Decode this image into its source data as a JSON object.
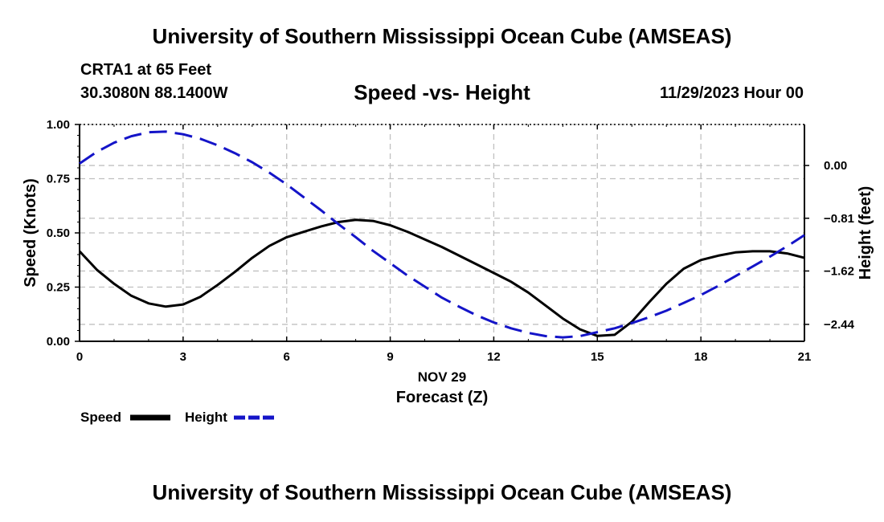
{
  "header": {
    "title": "University of Southern Mississippi Ocean Cube (AMSEAS)",
    "station": "CRTA1 at 65 Feet",
    "coords": "30.3080N  88.1400W",
    "subtitle": "Speed -vs- Height",
    "date": "11/29/2023 Hour 00"
  },
  "footer": {
    "title": "University of Southern Mississippi Ocean Cube (AMSEAS)"
  },
  "chart_data": {
    "type": "line",
    "title": "Speed -vs- Height",
    "xlabel_date": "NOV 29",
    "xlabel": "Forecast (Z)",
    "ylabel": "Speed (Knots)",
    "y2label": "Height (feet)",
    "xlim": [
      0,
      21
    ],
    "ylim": [
      0,
      1
    ],
    "y2lim": [
      -2.7,
      0.63
    ],
    "x_ticks": [
      0,
      3,
      6,
      9,
      12,
      15,
      18,
      21
    ],
    "x_tick_labels": [
      "0",
      "3",
      "6",
      "9",
      "12",
      "15",
      "18",
      "21"
    ],
    "y_ticks": [
      0,
      0.25,
      0.5,
      0.75,
      1.0
    ],
    "y_tick_labels": [
      "0.00",
      "0.25",
      "0.50",
      "0.75",
      "1.00"
    ],
    "y2_ticks": [
      0.0,
      -0.81,
      -1.62,
      -2.44
    ],
    "y2_tick_labels": [
      "0.00",
      "−0.81",
      "−1.62",
      "−2.44"
    ],
    "grid": true,
    "colors": {
      "speed": "#000000",
      "height": "#1414c8",
      "grid": "#c0c0c0"
    },
    "legend": [
      "Speed",
      "Height"
    ],
    "series": [
      {
        "name": "Speed",
        "axis": "left",
        "style": "solid",
        "x": [
          0,
          0.5,
          1,
          1.5,
          2,
          2.5,
          3,
          3.5,
          4,
          4.5,
          5,
          5.5,
          6,
          6.5,
          7,
          7.5,
          8,
          8.5,
          9,
          9.5,
          10,
          10.5,
          11,
          11.5,
          12,
          12.5,
          13,
          13.5,
          14,
          14.5,
          15,
          15.5,
          16,
          16.5,
          17,
          17.5,
          18,
          18.5,
          19,
          19.5,
          20,
          20.5,
          21
        ],
        "values": [
          0.415,
          0.33,
          0.265,
          0.21,
          0.175,
          0.16,
          0.17,
          0.205,
          0.26,
          0.32,
          0.385,
          0.44,
          0.48,
          0.505,
          0.53,
          0.55,
          0.56,
          0.555,
          0.535,
          0.505,
          0.47,
          0.435,
          0.395,
          0.355,
          0.315,
          0.275,
          0.225,
          0.165,
          0.105,
          0.055,
          0.025,
          0.03,
          0.09,
          0.18,
          0.265,
          0.335,
          0.375,
          0.395,
          0.41,
          0.415,
          0.415,
          0.405,
          0.385
        ]
      },
      {
        "name": "Height",
        "axis": "right",
        "style": "dashed",
        "x": [
          0,
          0.5,
          1,
          1.5,
          2,
          2.5,
          3,
          3.5,
          4,
          4.5,
          5,
          5.5,
          6,
          6.5,
          7,
          7.5,
          8,
          8.5,
          9,
          9.5,
          10,
          10.5,
          11,
          11.5,
          12,
          12.5,
          13,
          13.5,
          14,
          14.5,
          15,
          15.5,
          16,
          16.5,
          17,
          17.5,
          18,
          18.5,
          19,
          19.5,
          20,
          20.5,
          21
        ],
        "values": [
          0.03,
          0.21,
          0.35,
          0.45,
          0.51,
          0.52,
          0.48,
          0.41,
          0.31,
          0.19,
          0.05,
          -0.11,
          -0.29,
          -0.49,
          -0.69,
          -0.9,
          -1.1,
          -1.31,
          -1.5,
          -1.69,
          -1.86,
          -2.03,
          -2.17,
          -2.3,
          -2.41,
          -2.5,
          -2.57,
          -2.62,
          -2.64,
          -2.62,
          -2.56,
          -2.5,
          -2.42,
          -2.33,
          -2.23,
          -2.11,
          -1.99,
          -1.85,
          -1.7,
          -1.55,
          -1.4,
          -1.24,
          -1.07
        ]
      }
    ]
  }
}
